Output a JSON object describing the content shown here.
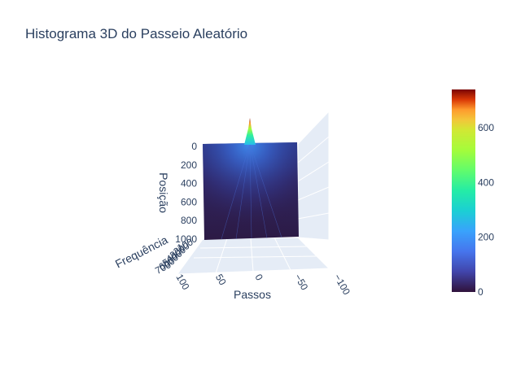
{
  "title": "Histograma 3D do Passeio Aleatório",
  "chart_data": {
    "type": "surface3d",
    "title": "Histograma 3D do Passeio Aleatório",
    "colorscale": "turbo",
    "x_axis": {
      "label": "Passos",
      "range": [
        -100,
        100
      ],
      "ticks": [
        "100",
        "50",
        "0",
        "−50",
        "−100"
      ]
    },
    "y_axis": {
      "label": "Posição",
      "range": [
        0,
        1000
      ],
      "ticks": [
        "0",
        "200",
        "400",
        "600",
        "800",
        "1000"
      ]
    },
    "z_axis": {
      "label": "Frequência",
      "range": [
        0,
        700
      ],
      "ticks": [
        "100",
        "200",
        "300",
        "400",
        "500",
        "600",
        "700"
      ]
    },
    "peak": {
      "value": 700,
      "position": 0,
      "step": 0
    },
    "colorbar": {
      "range": [
        0,
        740
      ],
      "ticks": [
        "0",
        "200",
        "400",
        "600"
      ]
    }
  }
}
